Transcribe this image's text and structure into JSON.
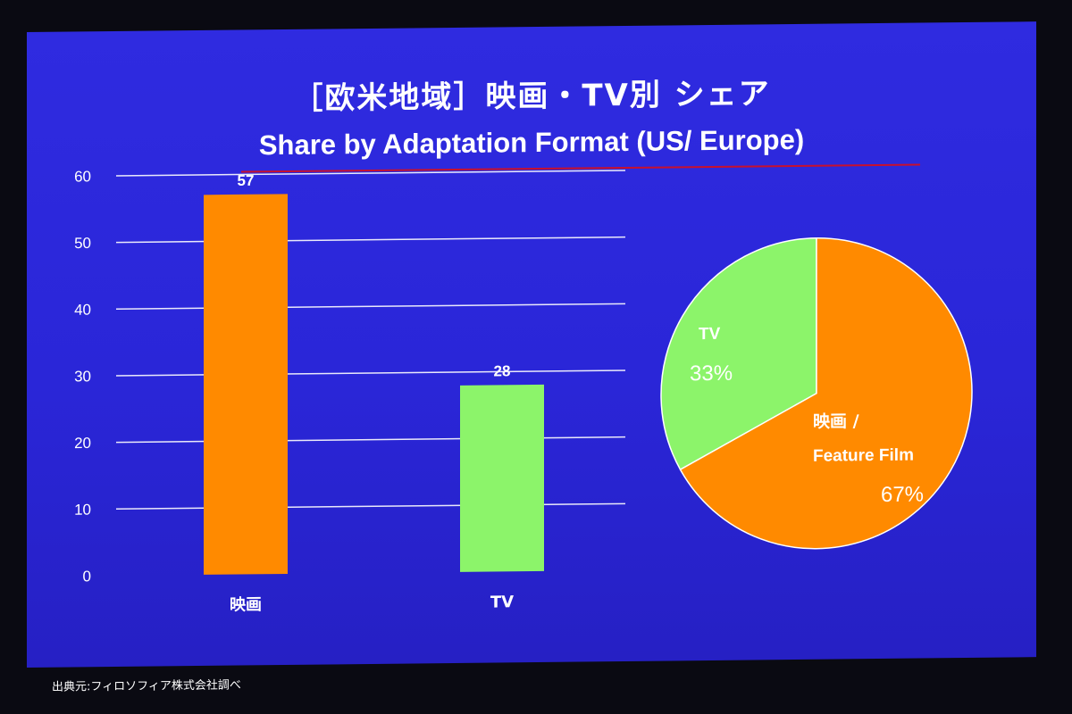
{
  "header": {
    "title_jp": "［欧米地域］映画・TV別 シェア",
    "title_en": "Share by Adaptation Format (US/ Europe)"
  },
  "source_note": "出典元:フィロソフィア株式会社調べ",
  "colors": {
    "background": "#2b27da",
    "film": "#ff8a00",
    "tv": "#8cf46a",
    "title_rule": "#c8102e",
    "text": "#ffffff"
  },
  "chart_data": [
    {
      "type": "bar",
      "categories": [
        "映画",
        "TV"
      ],
      "values": [
        57,
        28
      ],
      "data_labels": [
        "57",
        "28"
      ],
      "colors": [
        "#ff8a00",
        "#8cf46a"
      ],
      "ylim": [
        0,
        60
      ],
      "yticks": [
        0,
        10,
        20,
        30,
        40,
        50,
        60
      ],
      "grid": true
    },
    {
      "type": "pie",
      "slices": [
        {
          "label": "TV",
          "value": 33,
          "display": "33%",
          "color": "#8cf46a"
        },
        {
          "label_line1": "映画 /",
          "label_line2": "Feature Film",
          "value": 67,
          "display": "67%",
          "color": "#ff8a00"
        }
      ]
    }
  ]
}
